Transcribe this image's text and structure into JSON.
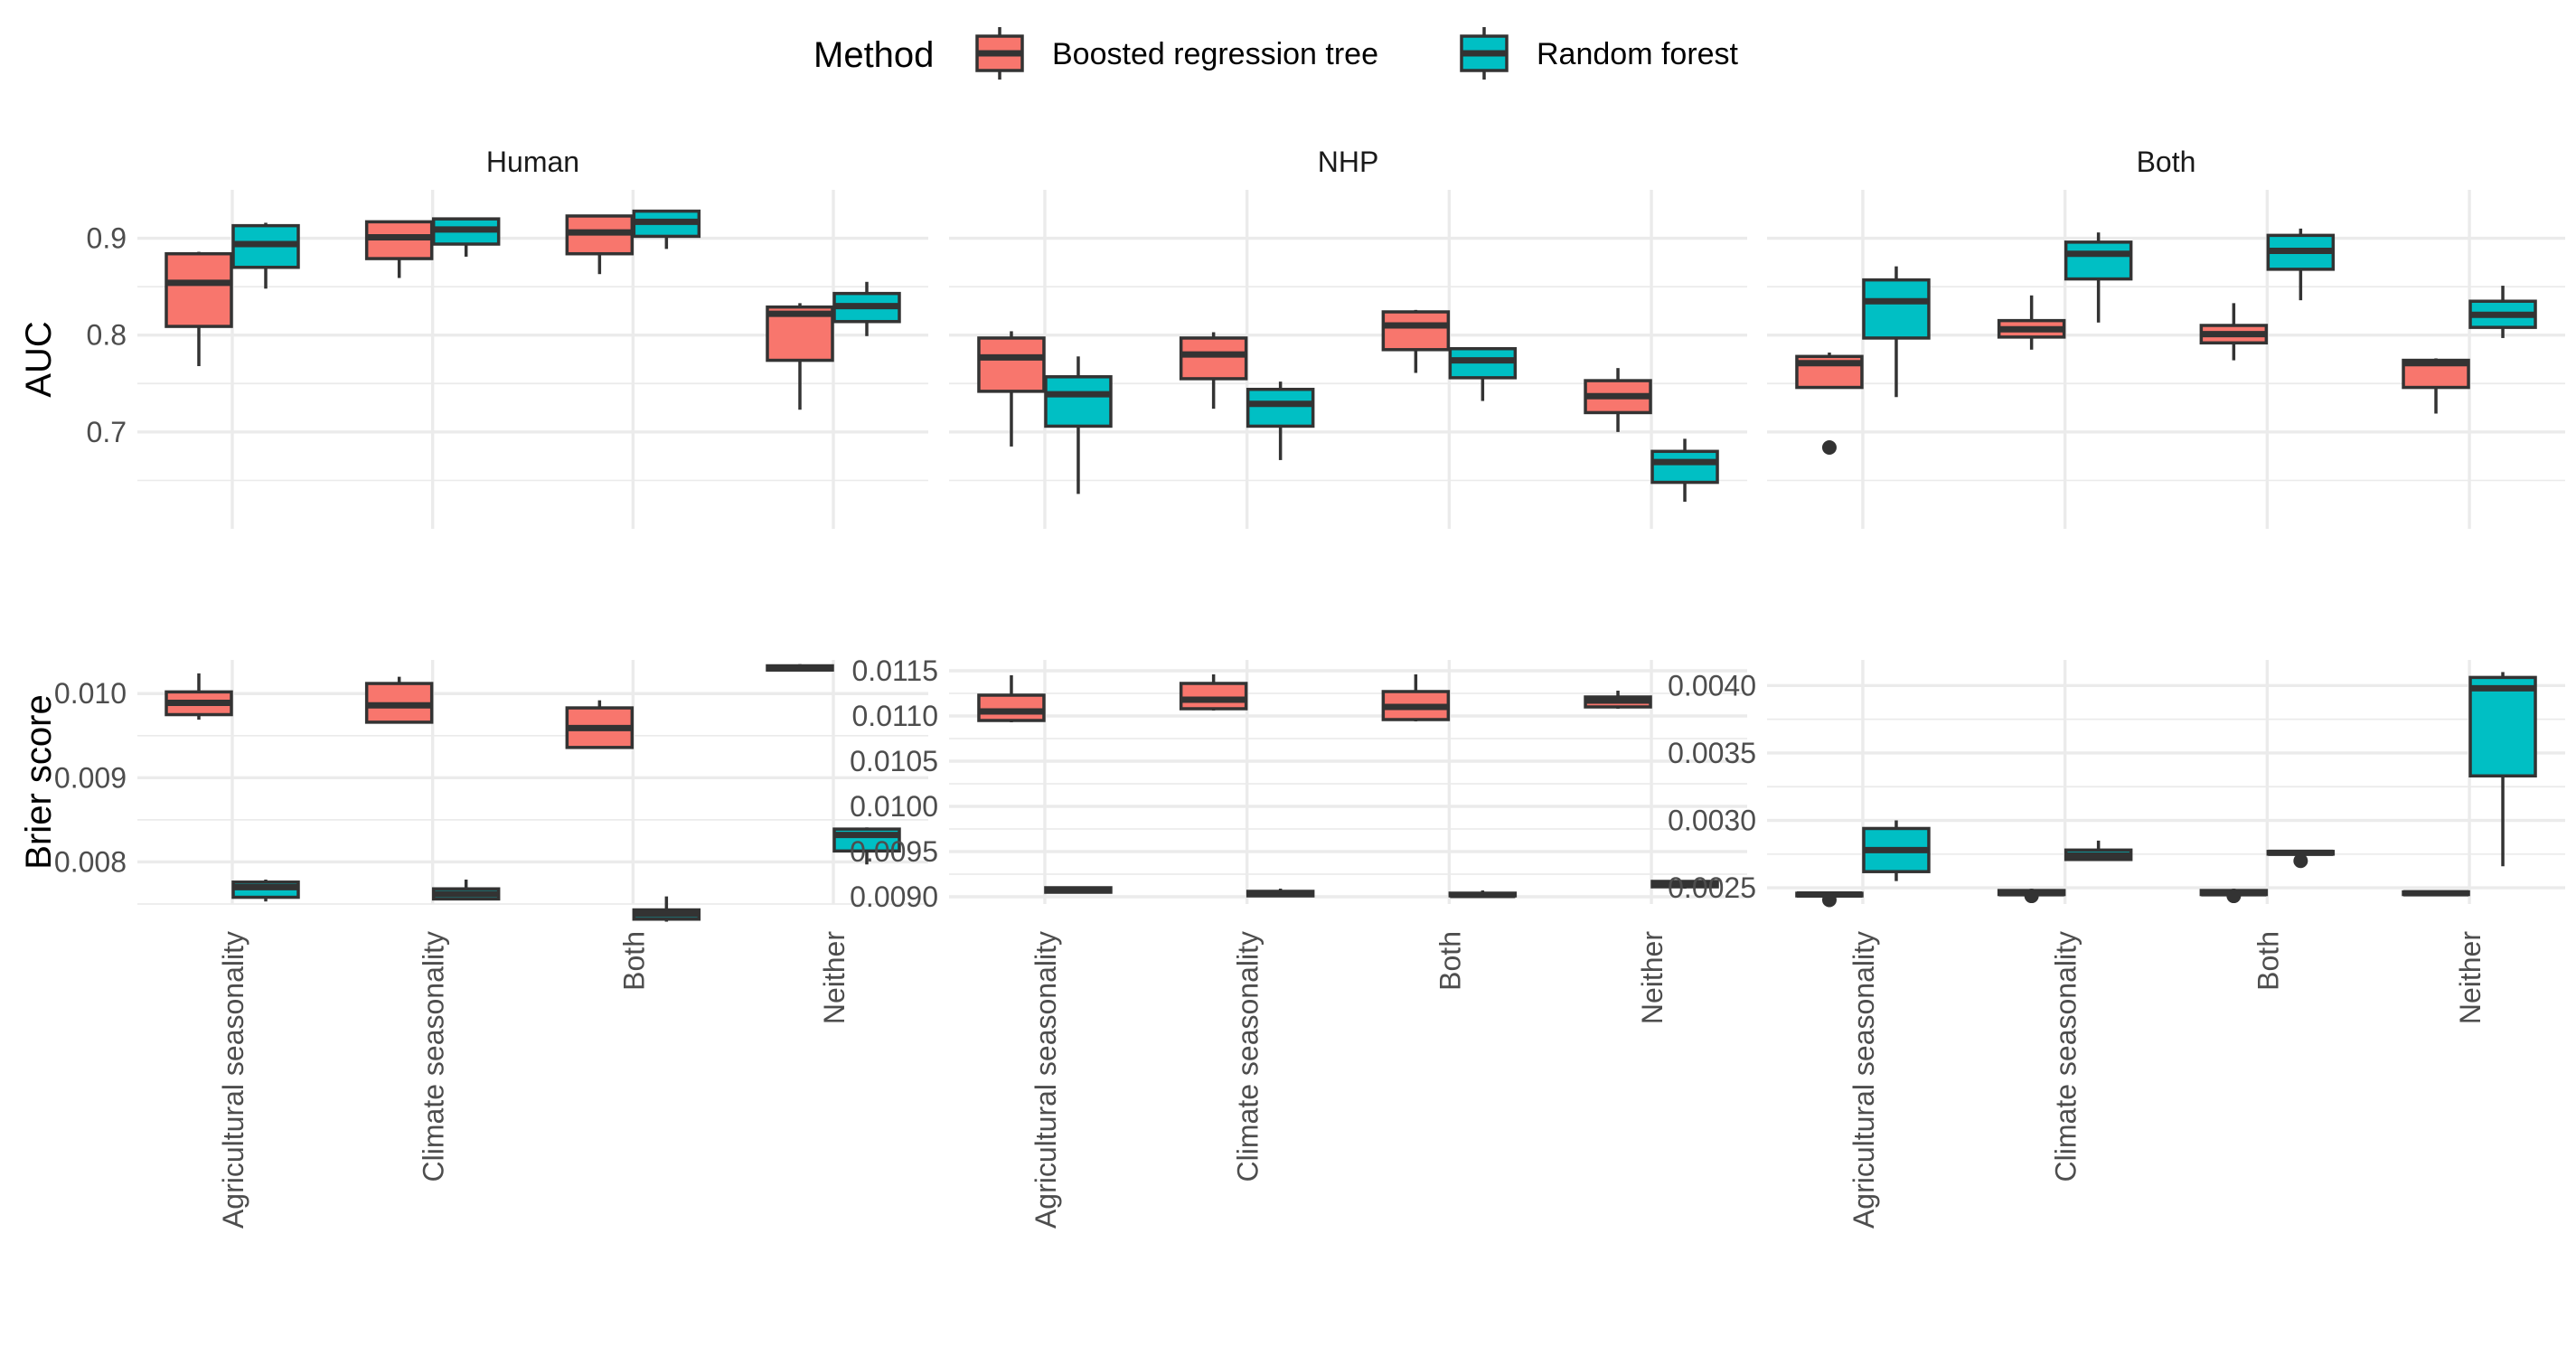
{
  "legend": {
    "title": "Method",
    "entries": [
      {
        "name": "Boosted regression tree",
        "color": "#F8766D"
      },
      {
        "name": "Random forest",
        "color": "#00BFC4"
      }
    ]
  },
  "chart_data": {
    "type": "boxplot",
    "categories": [
      "Agricultural seasonality",
      "Climate seasonality",
      "Both",
      "Neither"
    ],
    "series": [
      "Boosted regression tree",
      "Random forest"
    ],
    "legend_position": "top",
    "grid": true,
    "panels": [
      {
        "id": "auc-human",
        "facet": "Human",
        "ylabel": "AUC",
        "ylim": [
          0.6,
          0.95
        ],
        "yticks": [
          {
            "v": 0.7,
            "label": "0.7"
          },
          {
            "v": 0.8,
            "label": "0.8"
          },
          {
            "v": 0.9,
            "label": "0.9"
          }
        ],
        "boxes": [
          {
            "series": 0,
            "category": 0,
            "min": 0.768,
            "q1": 0.809,
            "median": 0.854,
            "q3": 0.884,
            "max": 0.886,
            "outliers": []
          },
          {
            "series": 1,
            "category": 0,
            "min": 0.848,
            "q1": 0.87,
            "median": 0.894,
            "q3": 0.913,
            "max": 0.916,
            "outliers": []
          },
          {
            "series": 0,
            "category": 1,
            "min": 0.859,
            "q1": 0.879,
            "median": 0.901,
            "q3": 0.917,
            "max": 0.918,
            "outliers": []
          },
          {
            "series": 1,
            "category": 1,
            "min": 0.881,
            "q1": 0.894,
            "median": 0.909,
            "q3": 0.92,
            "max": 0.921,
            "outliers": []
          },
          {
            "series": 0,
            "category": 2,
            "min": 0.863,
            "q1": 0.884,
            "median": 0.906,
            "q3": 0.923,
            "max": 0.924,
            "outliers": []
          },
          {
            "series": 1,
            "category": 2,
            "min": 0.889,
            "q1": 0.902,
            "median": 0.917,
            "q3": 0.928,
            "max": 0.929,
            "outliers": []
          },
          {
            "series": 0,
            "category": 3,
            "min": 0.723,
            "q1": 0.774,
            "median": 0.822,
            "q3": 0.829,
            "max": 0.833,
            "outliers": []
          },
          {
            "series": 1,
            "category": 3,
            "min": 0.799,
            "q1": 0.814,
            "median": 0.83,
            "q3": 0.843,
            "max": 0.855,
            "outliers": []
          }
        ]
      },
      {
        "id": "auc-nhp",
        "facet": "NHP",
        "ylabel": "",
        "ylim": [
          0.6,
          0.95
        ],
        "yticks": [
          {
            "v": 0.7,
            "label": ""
          },
          {
            "v": 0.8,
            "label": ""
          },
          {
            "v": 0.9,
            "label": ""
          }
        ],
        "boxes": [
          {
            "series": 0,
            "category": 0,
            "min": 0.685,
            "q1": 0.742,
            "median": 0.777,
            "q3": 0.797,
            "max": 0.804,
            "outliers": []
          },
          {
            "series": 1,
            "category": 0,
            "min": 0.636,
            "q1": 0.706,
            "median": 0.739,
            "q3": 0.757,
            "max": 0.778,
            "outliers": []
          },
          {
            "series": 0,
            "category": 1,
            "min": 0.724,
            "q1": 0.755,
            "median": 0.78,
            "q3": 0.797,
            "max": 0.803,
            "outliers": []
          },
          {
            "series": 1,
            "category": 1,
            "min": 0.671,
            "q1": 0.706,
            "median": 0.729,
            "q3": 0.744,
            "max": 0.752,
            "outliers": []
          },
          {
            "series": 0,
            "category": 2,
            "min": 0.761,
            "q1": 0.785,
            "median": 0.81,
            "q3": 0.824,
            "max": 0.826,
            "outliers": []
          },
          {
            "series": 1,
            "category": 2,
            "min": 0.732,
            "q1": 0.756,
            "median": 0.774,
            "q3": 0.786,
            "max": 0.787,
            "outliers": []
          },
          {
            "series": 0,
            "category": 3,
            "min": 0.7,
            "q1": 0.72,
            "median": 0.737,
            "q3": 0.753,
            "max": 0.766,
            "outliers": []
          },
          {
            "series": 1,
            "category": 3,
            "min": 0.628,
            "q1": 0.648,
            "median": 0.669,
            "q3": 0.68,
            "max": 0.693,
            "outliers": []
          }
        ]
      },
      {
        "id": "auc-both",
        "facet": "Both",
        "ylabel": "",
        "ylim": [
          0.6,
          0.95
        ],
        "yticks": [
          {
            "v": 0.7,
            "label": ""
          },
          {
            "v": 0.8,
            "label": ""
          },
          {
            "v": 0.9,
            "label": ""
          }
        ],
        "boxes": [
          {
            "series": 0,
            "category": 0,
            "min": 0.745,
            "q1": 0.746,
            "median": 0.771,
            "q3": 0.778,
            "max": 0.782,
            "outliers": [
              0.684
            ]
          },
          {
            "series": 1,
            "category": 0,
            "min": 0.736,
            "q1": 0.797,
            "median": 0.835,
            "q3": 0.857,
            "max": 0.871,
            "outliers": []
          },
          {
            "series": 0,
            "category": 1,
            "min": 0.785,
            "q1": 0.798,
            "median": 0.806,
            "q3": 0.815,
            "max": 0.841,
            "outliers": []
          },
          {
            "series": 1,
            "category": 1,
            "min": 0.813,
            "q1": 0.858,
            "median": 0.884,
            "q3": 0.896,
            "max": 0.906,
            "outliers": []
          },
          {
            "series": 0,
            "category": 2,
            "min": 0.774,
            "q1": 0.792,
            "median": 0.801,
            "q3": 0.81,
            "max": 0.833,
            "outliers": []
          },
          {
            "series": 1,
            "category": 2,
            "min": 0.836,
            "q1": 0.868,
            "median": 0.887,
            "q3": 0.903,
            "max": 0.91,
            "outliers": []
          },
          {
            "series": 0,
            "category": 3,
            "min": 0.719,
            "q1": 0.746,
            "median": 0.771,
            "q3": 0.774,
            "max": 0.776,
            "outliers": []
          },
          {
            "series": 1,
            "category": 3,
            "min": 0.797,
            "q1": 0.808,
            "median": 0.821,
            "q3": 0.835,
            "max": 0.851,
            "outliers": []
          }
        ]
      },
      {
        "id": "brier-human",
        "facet": "Human",
        "ylabel": "Brier score",
        "ylim": [
          0.0075,
          0.0104
        ],
        "yticks": [
          {
            "v": 0.008,
            "label": "0.008"
          },
          {
            "v": 0.009,
            "label": "0.009"
          },
          {
            "v": 0.01,
            "label": "0.010"
          }
        ],
        "boxes": [
          {
            "series": 0,
            "category": 0,
            "min": 0.00969,
            "q1": 0.00975,
            "median": 0.00989,
            "q3": 0.01002,
            "max": 0.01024,
            "outliers": []
          },
          {
            "series": 1,
            "category": 0,
            "min": 0.00753,
            "q1": 0.00758,
            "median": 0.0077,
            "q3": 0.00776,
            "max": 0.00779,
            "outliers": []
          },
          {
            "series": 0,
            "category": 1,
            "min": 0.00965,
            "q1": 0.00966,
            "median": 0.00986,
            "q3": 0.01012,
            "max": 0.0102,
            "outliers": []
          },
          {
            "series": 1,
            "category": 1,
            "min": 0.00755,
            "q1": 0.00756,
            "median": 0.00762,
            "q3": 0.00768,
            "max": 0.00779,
            "outliers": []
          },
          {
            "series": 0,
            "category": 2,
            "min": 0.00935,
            "q1": 0.00936,
            "median": 0.00959,
            "q3": 0.00983,
            "max": 0.00992,
            "outliers": []
          },
          {
            "series": 1,
            "category": 2,
            "min": 0.00729,
            "q1": 0.00732,
            "median": 0.00738,
            "q3": 0.00743,
            "max": 0.00759,
            "outliers": []
          },
          {
            "series": 0,
            "category": 3,
            "min": 0.01027,
            "q1": 0.01028,
            "median": 0.0103,
            "q3": 0.01033,
            "max": 0.01035,
            "outliers": []
          },
          {
            "series": 1,
            "category": 3,
            "min": 0.00797,
            "q1": 0.00813,
            "median": 0.00832,
            "q3": 0.00839,
            "max": 0.00841,
            "outliers": []
          }
        ]
      },
      {
        "id": "brier-nhp",
        "facet": "NHP",
        "ylabel": "",
        "ylim": [
          0.00892,
          0.01162
        ],
        "yticks": [
          {
            "v": 0.009,
            "label": "0.0090"
          },
          {
            "v": 0.0095,
            "label": "0.0095"
          },
          {
            "v": 0.01,
            "label": "0.0100"
          },
          {
            "v": 0.0105,
            "label": "0.0105"
          },
          {
            "v": 0.011,
            "label": "0.0110"
          },
          {
            "v": 0.0115,
            "label": "0.0115"
          }
        ],
        "boxes": [
          {
            "series": 0,
            "category": 0,
            "min": 0.01093,
            "q1": 0.01095,
            "median": 0.01105,
            "q3": 0.01123,
            "max": 0.01145,
            "outliers": []
          },
          {
            "series": 1,
            "category": 0,
            "min": 0.00904,
            "q1": 0.00905,
            "median": 0.00908,
            "q3": 0.0091,
            "max": 0.00911,
            "outliers": []
          },
          {
            "series": 0,
            "category": 1,
            "min": 0.01106,
            "q1": 0.01108,
            "median": 0.01118,
            "q3": 0.01136,
            "max": 0.01146,
            "outliers": []
          },
          {
            "series": 1,
            "category": 1,
            "min": 0.009,
            "q1": 0.00901,
            "median": 0.00903,
            "q3": 0.00906,
            "max": 0.00909,
            "outliers": []
          },
          {
            "series": 0,
            "category": 2,
            "min": 0.01094,
            "q1": 0.01096,
            "median": 0.0111,
            "q3": 0.01127,
            "max": 0.01146,
            "outliers": []
          },
          {
            "series": 1,
            "category": 2,
            "min": 0.009,
            "q1": 0.00901,
            "median": 0.00902,
            "q3": 0.00904,
            "max": 0.00907,
            "outliers": []
          },
          {
            "series": 0,
            "category": 3,
            "min": 0.01108,
            "q1": 0.0111,
            "median": 0.01117,
            "q3": 0.01121,
            "max": 0.01128,
            "outliers": []
          },
          {
            "series": 1,
            "category": 3,
            "min": 0.00909,
            "q1": 0.00911,
            "median": 0.00914,
            "q3": 0.00917,
            "max": 0.00918,
            "outliers": []
          }
        ]
      },
      {
        "id": "brier-both",
        "facet": "Both",
        "ylabel": "",
        "ylim": [
          0.00238,
          0.00419
        ],
        "yticks": [
          {
            "v": 0.0025,
            "label": "0.0025"
          },
          {
            "v": 0.003,
            "label": "0.0030"
          },
          {
            "v": 0.0035,
            "label": "0.0035"
          },
          {
            "v": 0.004,
            "label": "0.0040"
          }
        ],
        "boxes": [
          {
            "series": 0,
            "category": 0,
            "min": 0.00244,
            "q1": 0.00244,
            "median": 0.00245,
            "q3": 0.00246,
            "max": 0.00247,
            "outliers": [
              0.00241
            ]
          },
          {
            "series": 1,
            "category": 0,
            "min": 0.00255,
            "q1": 0.00262,
            "median": 0.00278,
            "q3": 0.00294,
            "max": 0.003,
            "outliers": []
          },
          {
            "series": 0,
            "category": 1,
            "min": 0.00244,
            "q1": 0.00245,
            "median": 0.00246,
            "q3": 0.00248,
            "max": 0.00249,
            "outliers": [
              0.00244
            ]
          },
          {
            "series": 1,
            "category": 1,
            "min": 0.0027,
            "q1": 0.00271,
            "median": 0.00274,
            "q3": 0.00278,
            "max": 0.00285,
            "outliers": []
          },
          {
            "series": 0,
            "category": 2,
            "min": 0.00244,
            "q1": 0.00245,
            "median": 0.00246,
            "q3": 0.00248,
            "max": 0.00249,
            "outliers": [
              0.00244
            ]
          },
          {
            "series": 1,
            "category": 2,
            "min": 0.00274,
            "q1": 0.00275,
            "median": 0.00276,
            "q3": 0.00277,
            "max": 0.00277,
            "outliers": [
              0.0027
            ]
          },
          {
            "series": 0,
            "category": 3,
            "min": 0.00244,
            "q1": 0.00245,
            "median": 0.00246,
            "q3": 0.00247,
            "max": 0.00248,
            "outliers": []
          },
          {
            "series": 1,
            "category": 3,
            "min": 0.00266,
            "q1": 0.00333,
            "median": 0.00398,
            "q3": 0.00406,
            "max": 0.0041,
            "outliers": []
          }
        ]
      }
    ]
  }
}
